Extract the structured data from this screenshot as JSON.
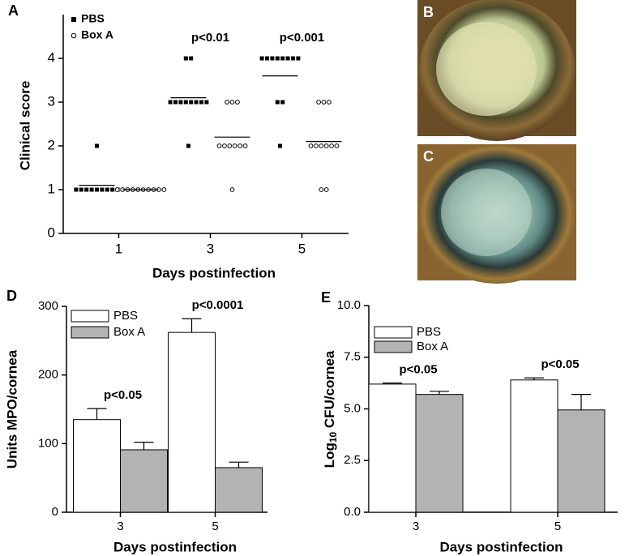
{
  "images": [
    {
      "label": "B"
    },
    {
      "label": "C"
    }
  ],
  "chart_data": [
    {
      "type": "dotplot",
      "label": "A",
      "ylabel": "Clinical score",
      "xlabel": "Days postinfection",
      "categories": [
        "1",
        "3",
        "5"
      ],
      "ylim": [
        0,
        5
      ],
      "yticks": [
        0,
        1,
        2,
        3,
        4
      ],
      "p_values": [
        null,
        "p<0.01",
        "p<0.001"
      ],
      "series": [
        {
          "name": "PBS",
          "marker": "square",
          "color": "#000000",
          "points": [
            [
              2,
              1,
              1,
              1,
              1,
              1,
              1,
              1,
              1,
              1
            ],
            [
              4,
              4,
              3,
              3,
              3,
              3,
              3,
              3,
              3,
              3,
              2
            ],
            [
              4,
              4,
              4,
              4,
              4,
              4,
              4,
              4,
              3,
              3,
              2
            ]
          ],
          "means": [
            1.1,
            3.1,
            3.6
          ]
        },
        {
          "name": "Box A",
          "marker": "circle",
          "color": "#000000",
          "points": [
            [
              1,
              1,
              1,
              1,
              1,
              1,
              1,
              1,
              1,
              1
            ],
            [
              3,
              3,
              3,
              2,
              2,
              2,
              2,
              2,
              2,
              1
            ],
            [
              3,
              3,
              3,
              2,
              2,
              2,
              2,
              2,
              2,
              1,
              1
            ]
          ],
          "means": [
            1.0,
            2.2,
            2.1
          ]
        }
      ]
    },
    {
      "type": "bar",
      "label": "D",
      "ylabel": "Units MPO/cornea",
      "xlabel": "Days postinfection",
      "categories": [
        "3",
        "5"
      ],
      "ylim": [
        0,
        300
      ],
      "yticks": [
        0,
        100,
        200,
        300
      ],
      "p_values": [
        "p<0.05",
        "p<0.0001"
      ],
      "series": [
        {
          "name": "PBS",
          "color": "#ffffff",
          "values": [
            135,
            262
          ],
          "errors": [
            16,
            20
          ]
        },
        {
          "name": "Box A",
          "color": "#b3b3b3",
          "values": [
            91,
            65
          ],
          "errors": [
            11,
            8
          ]
        }
      ]
    },
    {
      "type": "bar",
      "label": "E",
      "ylabel": {
        "base": "Log",
        "sub": "10",
        "rest": " CFU/cornea"
      },
      "xlabel": "Days postinfection",
      "categories": [
        "3",
        "5"
      ],
      "ylim": [
        0,
        10
      ],
      "yticks": [
        {
          "value": 0,
          "label": "0.0"
        },
        {
          "value": 2.5,
          "label": "2.5"
        },
        {
          "value": 5,
          "label": "5.0"
        },
        {
          "value": 7.5,
          "label": "7.5"
        },
        {
          "value": 10,
          "label": "10.0"
        }
      ],
      "p_values": [
        "p<0.05",
        "p<0.05"
      ],
      "series": [
        {
          "name": "PBS",
          "color": "#ffffff",
          "values": [
            6.2,
            6.4
          ],
          "errors": [
            0.05,
            0.1
          ]
        },
        {
          "name": "Box A",
          "color": "#b3b3b3",
          "values": [
            5.7,
            4.95
          ],
          "errors": [
            0.15,
            0.75
          ]
        }
      ]
    }
  ]
}
